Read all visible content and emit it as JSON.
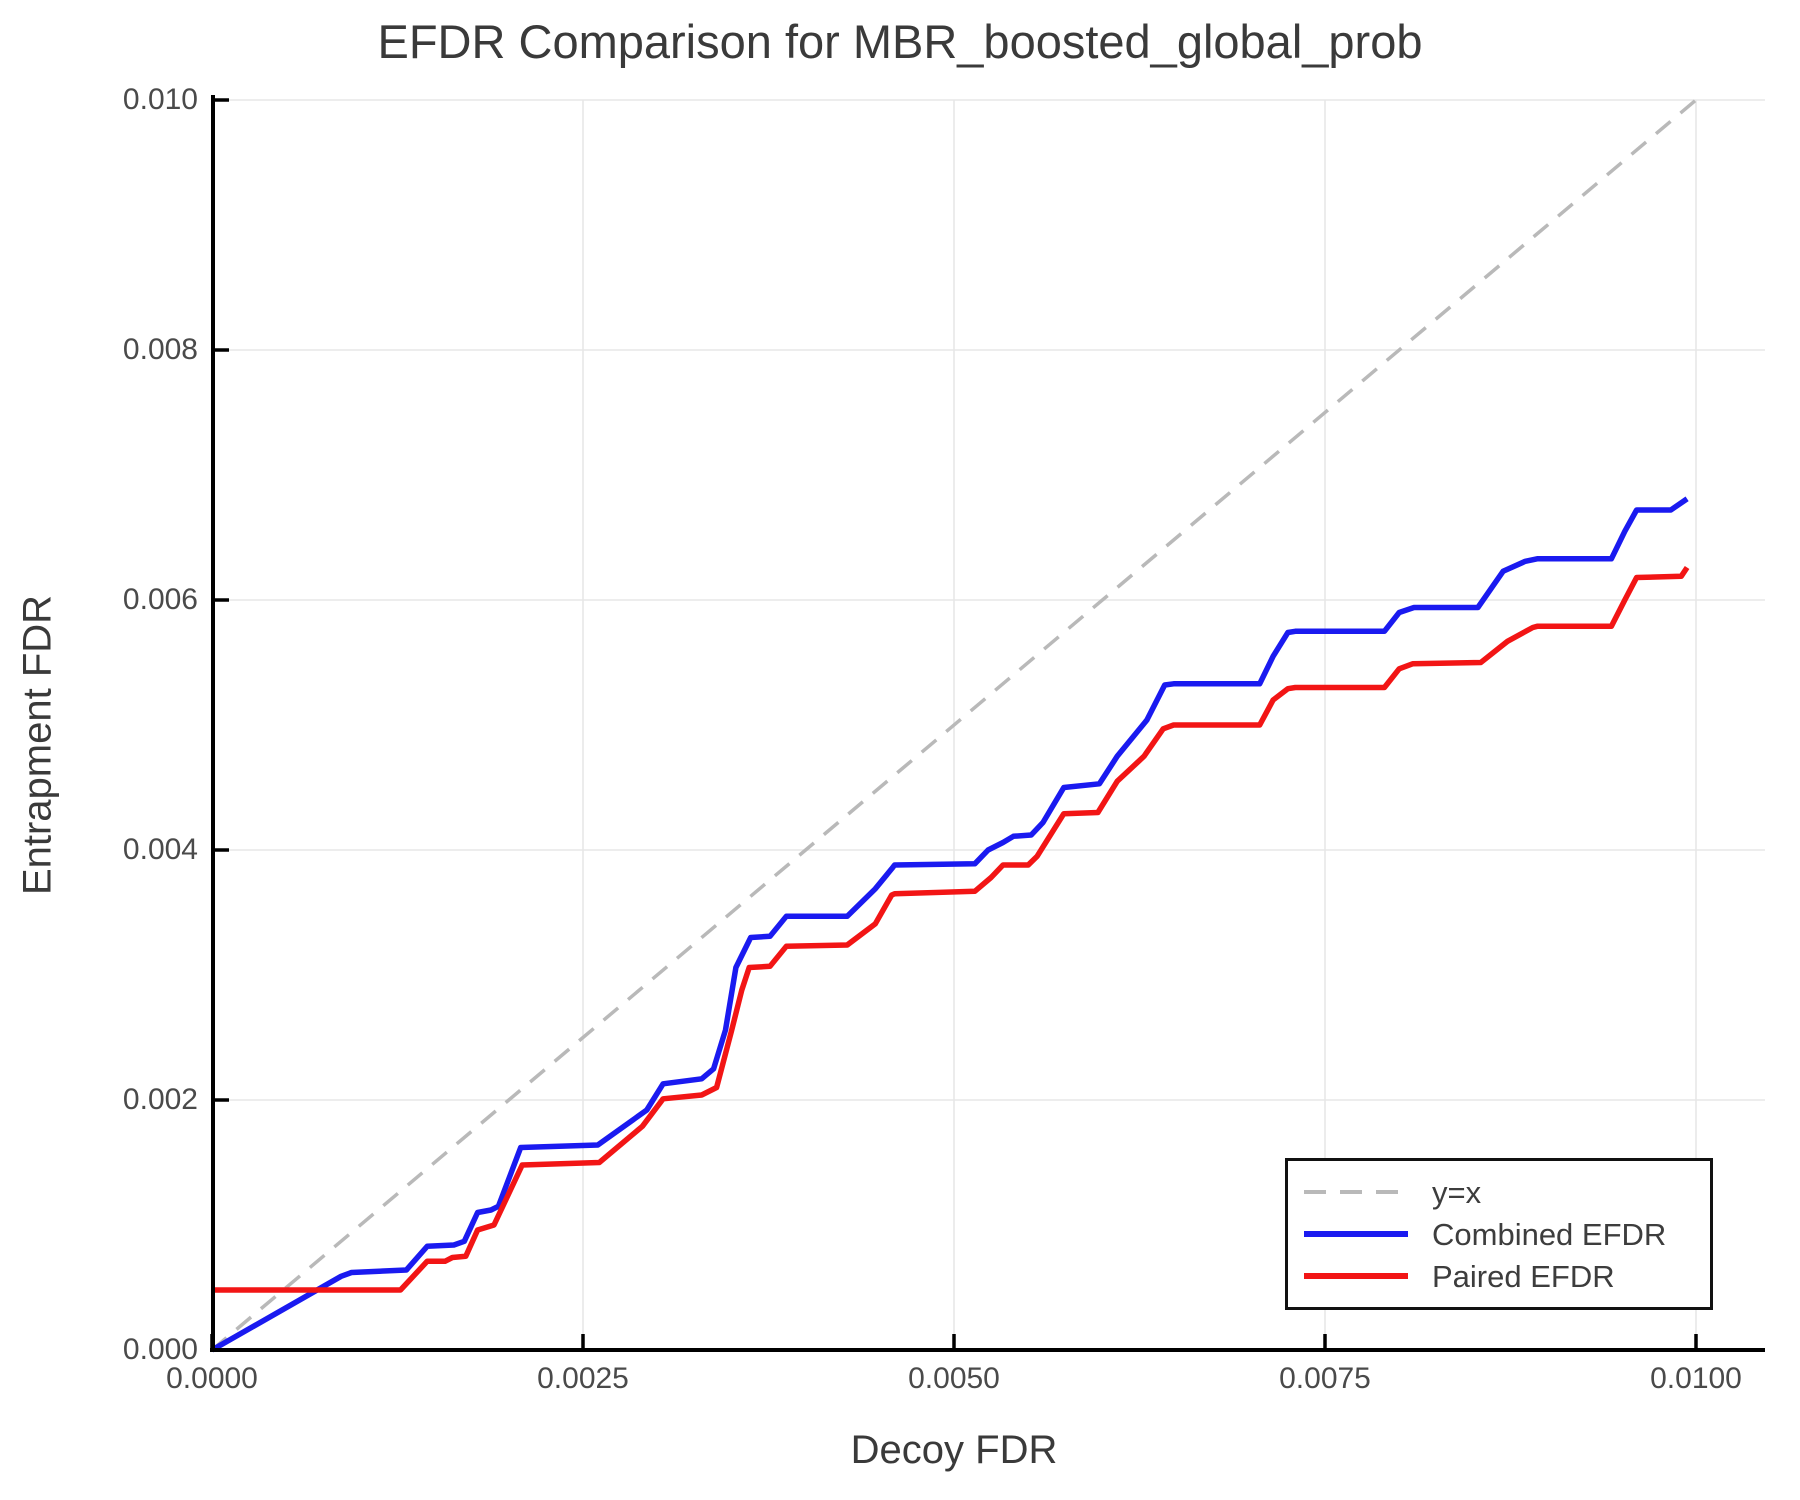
{
  "chart_data": {
    "type": "line",
    "title": "EFDR Comparison for MBR_boosted_global_prob",
    "xlabel": "Decoy FDR",
    "ylabel": "Entrapment FDR",
    "xlim": [
      0,
      0.010466
    ],
    "ylim": [
      0,
      0.01
    ],
    "grid": true,
    "x_ticks": [
      {
        "value": 0.0,
        "label": "0.0000"
      },
      {
        "value": 0.0025,
        "label": "0.0025"
      },
      {
        "value": 0.005,
        "label": "0.0050"
      },
      {
        "value": 0.0075,
        "label": "0.0075"
      },
      {
        "value": 0.01,
        "label": "0.0100"
      }
    ],
    "y_ticks": [
      {
        "value": 0.0,
        "label": "0.000"
      },
      {
        "value": 0.002,
        "label": "0.002"
      },
      {
        "value": 0.004,
        "label": "0.004"
      },
      {
        "value": 0.006,
        "label": "0.006"
      },
      {
        "value": 0.008,
        "label": "0.008"
      },
      {
        "value": 0.01,
        "label": "0.010"
      }
    ],
    "colors": {
      "background": "#ffffff",
      "grid": "#e7e7e7",
      "axis": "#000000",
      "title_text": "#3a3a3a",
      "tick_text": "#4a4a4a",
      "legend_text": "#3d3d3d",
      "legend_border": "#111111"
    },
    "legend": {
      "position": "lower right"
    },
    "series": [
      {
        "name": "y=x",
        "color": "#b9b9b9",
        "style": "dashed",
        "x": [
          0.0,
          0.01
        ],
        "y": [
          0.0,
          0.01
        ]
      },
      {
        "name": "Combined EFDR",
        "color": "#1a1af0",
        "style": "solid",
        "x": [
          0.0,
          0.00087,
          0.00094,
          0.00131,
          0.00145,
          0.00163,
          0.0017,
          0.00179,
          0.00188,
          0.00193,
          0.00208,
          0.0026,
          0.00293,
          0.00304,
          0.0033,
          0.00338,
          0.00346,
          0.00353,
          0.00363,
          0.00376,
          0.00387,
          0.00428,
          0.00447,
          0.00458,
          0.0046,
          0.00514,
          0.00523,
          0.00533,
          0.0054,
          0.00552,
          0.0056,
          0.00574,
          0.00598,
          0.0061,
          0.0063,
          0.00642,
          0.00648,
          0.00706,
          0.00715,
          0.00725,
          0.0073,
          0.0079,
          0.008,
          0.0081,
          0.00853,
          0.0087,
          0.00885,
          0.00893,
          0.00943,
          0.00952,
          0.0096,
          0.00983,
          0.00994
        ],
        "y": [
          0.0,
          0.00059,
          0.00062,
          0.00064,
          0.00083,
          0.00084,
          0.00087,
          0.0011,
          0.00112,
          0.00115,
          0.00162,
          0.00164,
          0.00192,
          0.00213,
          0.00217,
          0.00225,
          0.00256,
          0.00306,
          0.0033,
          0.00331,
          0.00347,
          0.00347,
          0.00369,
          0.00385,
          0.00388,
          0.00389,
          0.004,
          0.00406,
          0.00411,
          0.00412,
          0.00422,
          0.0045,
          0.00453,
          0.00475,
          0.00504,
          0.00532,
          0.00533,
          0.00533,
          0.00555,
          0.00574,
          0.00575,
          0.00575,
          0.0059,
          0.00594,
          0.00594,
          0.00623,
          0.00631,
          0.00633,
          0.00633,
          0.00655,
          0.00672,
          0.00672,
          0.00681
        ]
      },
      {
        "name": "Paired EFDR",
        "color": "#f21515",
        "style": "solid",
        "x": [
          0.0,
          0.00127,
          0.00145,
          0.00157,
          0.00162,
          0.00171,
          0.00179,
          0.0019,
          0.00209,
          0.00261,
          0.0029,
          0.00304,
          0.0033,
          0.0034,
          0.0035,
          0.00357,
          0.00362,
          0.00376,
          0.00387,
          0.00428,
          0.00447,
          0.00458,
          0.0046,
          0.00514,
          0.00525,
          0.00533,
          0.0055,
          0.00556,
          0.00574,
          0.00597,
          0.0061,
          0.00628,
          0.00641,
          0.00648,
          0.00706,
          0.00715,
          0.00725,
          0.0073,
          0.0079,
          0.008,
          0.00809,
          0.00855,
          0.00873,
          0.0089,
          0.00893,
          0.00943,
          0.00952,
          0.0096,
          0.0099,
          0.00994
        ],
        "y": [
          0.00048,
          0.00048,
          0.00071,
          0.00071,
          0.00074,
          0.00075,
          0.00096,
          0.001,
          0.00148,
          0.0015,
          0.00179,
          0.00201,
          0.00204,
          0.0021,
          0.00255,
          0.00288,
          0.00306,
          0.00307,
          0.00323,
          0.00324,
          0.00341,
          0.00364,
          0.00365,
          0.00367,
          0.00378,
          0.00388,
          0.00388,
          0.00395,
          0.00429,
          0.0043,
          0.00455,
          0.00475,
          0.00497,
          0.005,
          0.005,
          0.0052,
          0.00529,
          0.0053,
          0.0053,
          0.00545,
          0.00549,
          0.0055,
          0.00567,
          0.00578,
          0.00579,
          0.00579,
          0.006,
          0.00618,
          0.00619,
          0.00626
        ]
      }
    ]
  }
}
